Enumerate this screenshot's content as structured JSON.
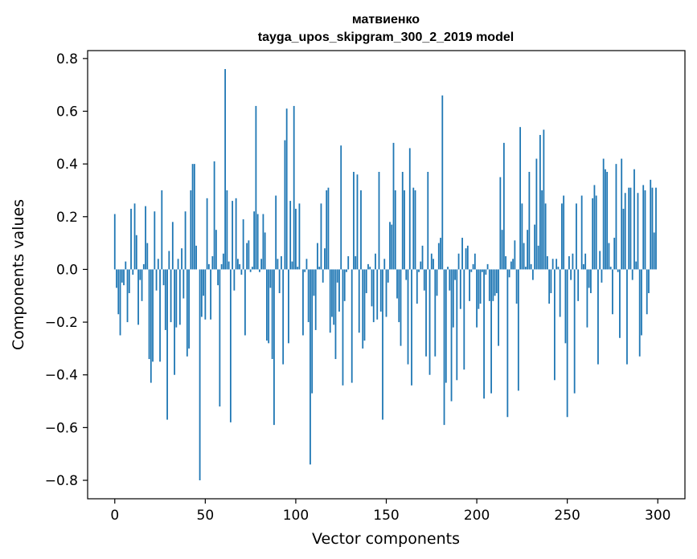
{
  "chart_data": {
    "type": "bar",
    "title": "матвиенко",
    "subtitle": "tayga_upos_skipgram_300_2_2019 model",
    "xlabel": "Vector components",
    "ylabel": "Components values",
    "xlim": [
      -15,
      315
    ],
    "ylim": [
      -0.87,
      0.83
    ],
    "x_ticks": [
      0,
      50,
      100,
      150,
      200,
      250,
      300
    ],
    "x_tick_labels": [
      "0",
      "50",
      "100",
      "150",
      "200",
      "250",
      "300"
    ],
    "y_ticks": [
      -0.8,
      -0.6,
      -0.4,
      -0.2,
      0.0,
      0.2,
      0.4,
      0.6,
      0.8
    ],
    "y_tick_labels": [
      "−0.8",
      "−0.6",
      "−0.4",
      "−0.2",
      "0.0",
      "0.2",
      "0.4",
      "0.6",
      "0.8"
    ],
    "grid": false,
    "bar_color": "#1f77b4",
    "x": [
      0,
      1,
      2,
      3,
      4,
      5,
      6,
      7,
      8,
      9,
      10,
      11,
      12,
      13,
      14,
      15,
      16,
      17,
      18,
      19,
      20,
      21,
      22,
      23,
      24,
      25,
      26,
      27,
      28,
      29,
      30,
      31,
      32,
      33,
      34,
      35,
      36,
      37,
      38,
      39,
      40,
      41,
      42,
      43,
      44,
      45,
      46,
      47,
      48,
      49,
      50,
      51,
      52,
      53,
      54,
      55,
      56,
      57,
      58,
      59,
      60,
      61,
      62,
      63,
      64,
      65,
      66,
      67,
      68,
      69,
      70,
      71,
      72,
      73,
      74,
      75,
      76,
      77,
      78,
      79,
      80,
      81,
      82,
      83,
      84,
      85,
      86,
      87,
      88,
      89,
      90,
      91,
      92,
      93,
      94,
      95,
      96,
      97,
      98,
      99,
      100,
      101,
      102,
      103,
      104,
      105,
      106,
      107,
      108,
      109,
      110,
      111,
      112,
      113,
      114,
      115,
      116,
      117,
      118,
      119,
      120,
      121,
      122,
      123,
      124,
      125,
      126,
      127,
      128,
      129,
      130,
      131,
      132,
      133,
      134,
      135,
      136,
      137,
      138,
      139,
      140,
      141,
      142,
      143,
      144,
      145,
      146,
      147,
      148,
      149,
      150,
      151,
      152,
      153,
      154,
      155,
      156,
      157,
      158,
      159,
      160,
      161,
      162,
      163,
      164,
      165,
      166,
      167,
      168,
      169,
      170,
      171,
      172,
      173,
      174,
      175,
      176,
      177,
      178,
      179,
      180,
      181,
      182,
      183,
      184,
      185,
      186,
      187,
      188,
      189,
      190,
      191,
      192,
      193,
      194,
      195,
      196,
      197,
      198,
      199,
      200,
      201,
      202,
      203,
      204,
      205,
      206,
      207,
      208,
      209,
      210,
      211,
      212,
      213,
      214,
      215,
      216,
      217,
      218,
      219,
      220,
      221,
      222,
      223,
      224,
      225,
      226,
      227,
      228,
      229,
      230,
      231,
      232,
      233,
      234,
      235,
      236,
      237,
      238,
      239,
      240,
      241,
      242,
      243,
      244,
      245,
      246,
      247,
      248,
      249,
      250,
      251,
      252,
      253,
      254,
      255,
      256,
      257,
      258,
      259,
      260,
      261,
      262,
      263,
      264,
      265,
      266,
      267,
      268,
      269,
      270,
      271,
      272,
      273,
      274,
      275,
      276,
      277,
      278,
      279,
      280,
      281,
      282,
      283,
      284,
      285,
      286,
      287,
      288,
      289,
      290,
      291,
      292,
      293,
      294,
      295,
      296,
      297,
      298,
      299
    ],
    "values": [
      0.21,
      -0.07,
      -0.17,
      -0.25,
      -0.05,
      -0.06,
      0.03,
      -0.2,
      -0.09,
      0.23,
      -0.02,
      0.25,
      0.13,
      -0.21,
      -0.04,
      -0.12,
      0.02,
      0.24,
      0.1,
      -0.34,
      -0.43,
      -0.35,
      0.22,
      -0.08,
      0.04,
      -0.35,
      0.3,
      -0.06,
      -0.23,
      -0.57,
      0.07,
      -0.2,
      0.18,
      -0.4,
      -0.22,
      0.04,
      -0.21,
      0.08,
      -0.11,
      0.22,
      -0.33,
      -0.3,
      0.3,
      0.4,
      0.4,
      0.09,
      0.0,
      -0.8,
      -0.18,
      -0.1,
      -0.19,
      0.27,
      0.02,
      -0.19,
      0.05,
      0.41,
      0.15,
      -0.06,
      -0.52,
      0.02,
      0.06,
      0.76,
      0.3,
      0.03,
      -0.58,
      0.26,
      -0.08,
      0.27,
      0.04,
      0.02,
      -0.02,
      0.19,
      -0.25,
      0.1,
      0.11,
      -0.01,
      0.01,
      0.22,
      0.62,
      0.21,
      -0.01,
      0.04,
      0.21,
      0.14,
      -0.27,
      -0.28,
      -0.07,
      -0.34,
      -0.59,
      0.28,
      0.04,
      -0.09,
      0.05,
      -0.36,
      0.49,
      0.61,
      -0.28,
      0.26,
      0.03,
      0.62,
      0.23,
      0.01,
      0.25,
      0.0,
      -0.25,
      -0.01,
      0.04,
      -0.2,
      -0.74,
      -0.47,
      -0.1,
      -0.23,
      0.1,
      0.01,
      0.25,
      -0.05,
      0.08,
      0.3,
      0.31,
      -0.24,
      -0.18,
      -0.21,
      -0.34,
      -0.05,
      -0.16,
      0.47,
      -0.44,
      -0.12,
      -0.01,
      0.05,
      0.0,
      -0.43,
      0.37,
      0.05,
      0.36,
      -0.24,
      0.3,
      -0.3,
      -0.27,
      -0.09,
      0.02,
      0.01,
      -0.14,
      -0.2,
      0.06,
      -0.19,
      0.37,
      -0.16,
      -0.57,
      0.04,
      -0.18,
      -0.05,
      0.18,
      0.17,
      0.48,
      0.3,
      -0.11,
      -0.2,
      -0.29,
      0.37,
      0.3,
      -0.04,
      -0.36,
      0.46,
      -0.44,
      0.31,
      0.3,
      -0.13,
      -0.01,
      0.03,
      0.09,
      -0.08,
      -0.33,
      0.37,
      -0.4,
      0.06,
      0.04,
      -0.33,
      -0.1,
      0.1,
      0.12,
      0.66,
      -0.59,
      -0.43,
      0.01,
      -0.08,
      -0.5,
      -0.22,
      -0.04,
      -0.42,
      0.06,
      -0.15,
      0.12,
      -0.38,
      0.08,
      0.09,
      -0.12,
      -0.01,
      0.02,
      0.06,
      -0.22,
      -0.15,
      -0.13,
      -0.01,
      -0.49,
      -0.02,
      0.02,
      -0.12,
      -0.47,
      -0.12,
      -0.1,
      -0.09,
      -0.29,
      0.35,
      0.15,
      0.48,
      0.05,
      -0.56,
      -0.03,
      0.03,
      0.04,
      0.11,
      -0.13,
      -0.46,
      0.54,
      0.25,
      0.1,
      0.01,
      0.15,
      0.37,
      0.02,
      -0.04,
      0.17,
      0.42,
      0.09,
      0.51,
      0.3,
      0.53,
      0.25,
      0.05,
      -0.13,
      -0.09,
      0.04,
      -0.42,
      0.04,
      0.01,
      -0.18,
      0.25,
      0.28,
      -0.28,
      -0.56,
      0.05,
      -0.04,
      0.06,
      -0.47,
      0.25,
      -0.12,
      0.0,
      0.28,
      0.02,
      0.06,
      -0.22,
      -0.07,
      -0.09,
      0.27,
      0.32,
      0.28,
      -0.36,
      0.07,
      -0.05,
      0.42,
      0.38,
      0.37,
      0.1,
      0.01,
      -0.17,
      0.12,
      0.4,
      -0.01,
      -0.26,
      0.42,
      0.23,
      0.29,
      -0.36,
      0.31,
      0.31,
      -0.04,
      0.38,
      0.03,
      0.29,
      -0.33,
      -0.25,
      0.32,
      0.3,
      -0.17,
      -0.09,
      0.34,
      0.31,
      0.14,
      0.31
    ]
  }
}
